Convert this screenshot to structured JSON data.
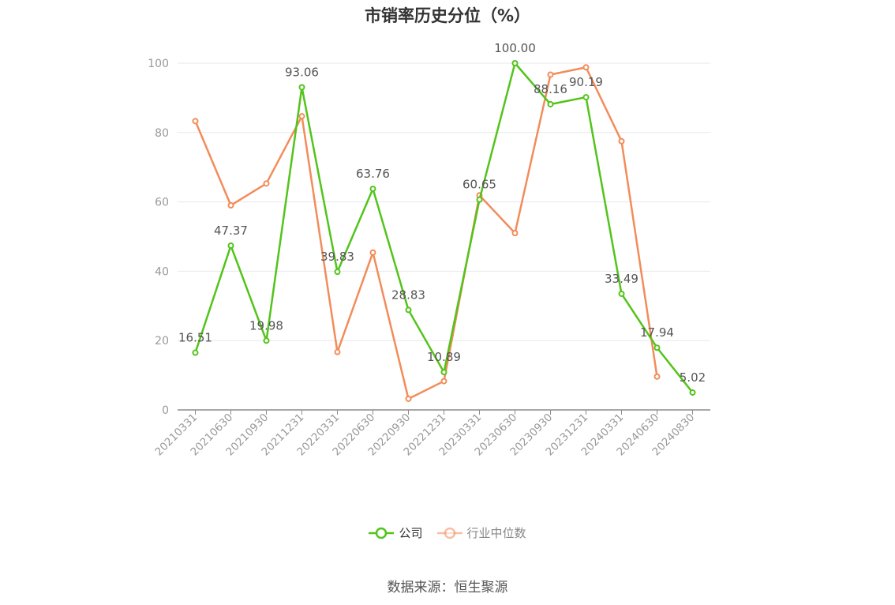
{
  "chart_data": {
    "type": "line",
    "title": "市销率历史分位（%）",
    "categories": [
      "20210331",
      "20210630",
      "20210930",
      "20211231",
      "20220331",
      "20220630",
      "20220930",
      "20221231",
      "20230331",
      "20230630",
      "20230930",
      "20231231",
      "20240331",
      "20240630",
      "20240830"
    ],
    "series": [
      {
        "name": "公司",
        "color": "#52c41a",
        "values": [
          16.51,
          47.37,
          19.98,
          93.06,
          39.83,
          63.76,
          28.83,
          10.89,
          60.65,
          100.0,
          88.16,
          90.19,
          33.49,
          17.94,
          5.02
        ],
        "labels": [
          "16.51",
          "47.37",
          "19.98",
          "93.06",
          "39.83",
          "63.76",
          "28.83",
          "10.89",
          "60.65",
          "100.00",
          "88.16",
          "90.19",
          "33.49",
          "17.94",
          "5.02"
        ]
      },
      {
        "name": "行业中位数",
        "color": "#f28c5a",
        "values": [
          83.3,
          59.0,
          65.3,
          84.7,
          16.7,
          45.4,
          3.2,
          8.3,
          61.9,
          51.0,
          96.7,
          98.8,
          77.5,
          9.6,
          null
        ]
      }
    ],
    "yticks": [
      0,
      20,
      40,
      60,
      80,
      100
    ],
    "ylim": [
      0,
      100
    ],
    "grid": true,
    "legend_position": "bottom"
  },
  "source": "数据来源：恒生聚源"
}
